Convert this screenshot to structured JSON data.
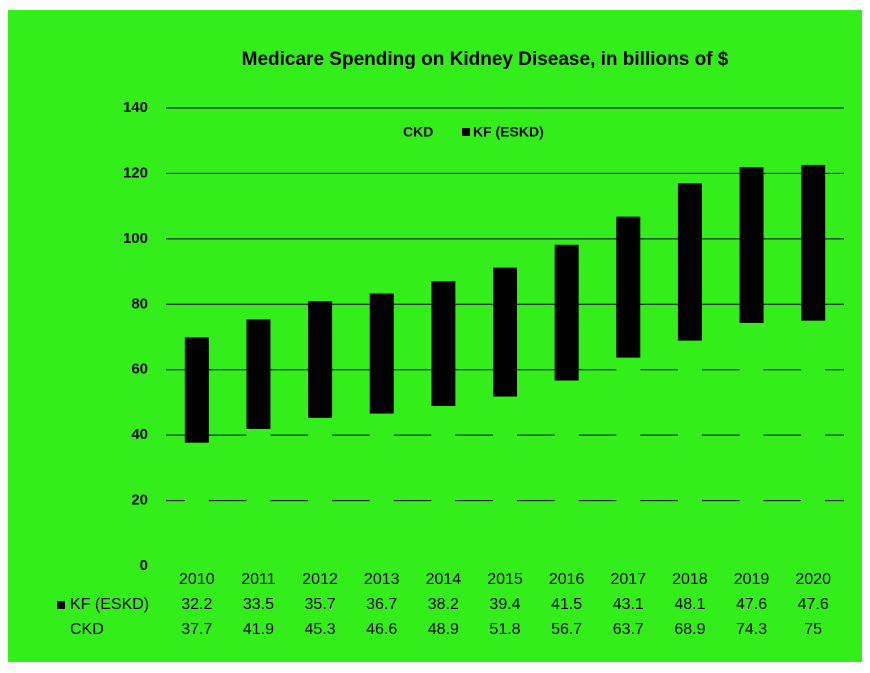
{
  "chart_data": {
    "type": "stacked_bar",
    "title": "Medicare Spending on Kidney Disease, in billions of $",
    "categories": [
      "2010",
      "2011",
      "2012",
      "2013",
      "2014",
      "2015",
      "2016",
      "2017",
      "2018",
      "2019",
      "2020"
    ],
    "series": [
      {
        "name": "CKD",
        "color": "#33ee1a",
        "values": [
          37.7,
          41.9,
          45.3,
          46.6,
          48.9,
          51.8,
          56.7,
          63.7,
          68.9,
          74.3,
          75
        ]
      },
      {
        "name": "KF (ESKD)",
        "color": "#000000",
        "values": [
          32.2,
          33.5,
          35.7,
          36.7,
          38.2,
          39.4,
          41.5,
          43.1,
          48.1,
          47.6,
          47.6
        ]
      }
    ],
    "ylim": [
      0,
      140
    ],
    "yticks": [
      0,
      20,
      40,
      60,
      80,
      100,
      120,
      140
    ],
    "grid": true,
    "legend": "top"
  }
}
